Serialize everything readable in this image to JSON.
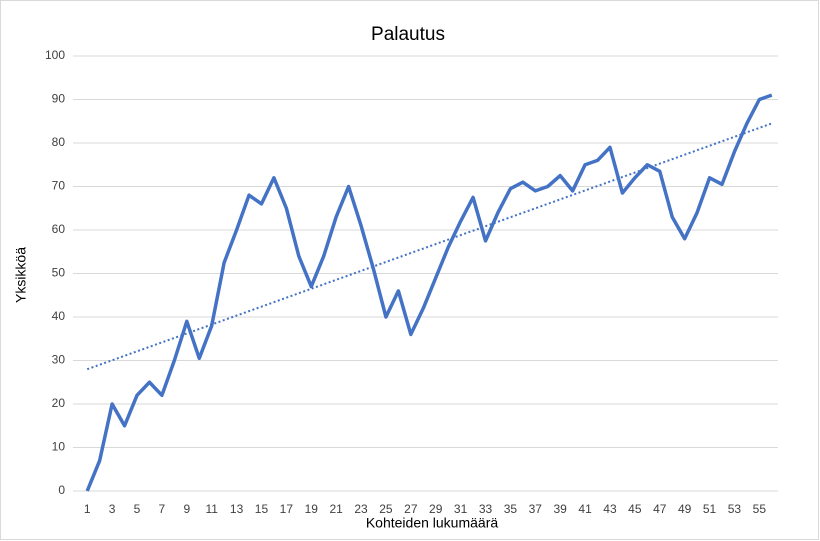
{
  "chart_data": {
    "type": "line",
    "title": "Palautus",
    "x_label": "Kohteiden lukumäärä",
    "y_label": "Yksikköä",
    "categories": [
      1,
      null,
      3,
      null,
      5,
      null,
      7,
      null,
      9,
      null,
      11,
      null,
      13,
      null,
      15,
      null,
      17,
      null,
      19,
      null,
      21,
      null,
      23,
      null,
      25,
      null,
      27,
      null,
      29,
      null,
      31,
      null,
      33,
      null,
      35,
      null,
      37,
      null,
      39,
      null,
      41,
      null,
      43,
      null,
      45,
      null,
      47,
      null,
      49,
      null,
      51,
      null,
      53,
      null,
      55,
      null
    ],
    "series": [
      {
        "color": "#4472c4",
        "values": [
          0,
          7,
          20,
          15,
          22,
          25,
          22,
          30,
          39,
          30.5,
          38,
          52.5,
          60,
          68,
          66,
          72,
          65,
          54,
          47,
          54,
          63,
          70,
          61,
          51,
          40,
          46,
          36,
          42,
          49,
          56,
          62,
          67.5,
          57.5,
          64,
          69.5,
          71,
          69,
          70,
          72.5,
          69,
          75,
          76,
          79,
          68.5,
          72,
          75,
          73.5,
          63,
          58,
          64,
          72,
          70.5,
          78,
          84.5,
          90,
          91
        ]
      }
    ],
    "trendline": {
      "color": "#4472c4",
      "start": 28,
      "end": 84.5
    },
    "ylim": [
      0,
      100
    ],
    "yticks": [
      0,
      10,
      20,
      30,
      40,
      50,
      60,
      70,
      80,
      90,
      100
    ],
    "grid": true
  }
}
